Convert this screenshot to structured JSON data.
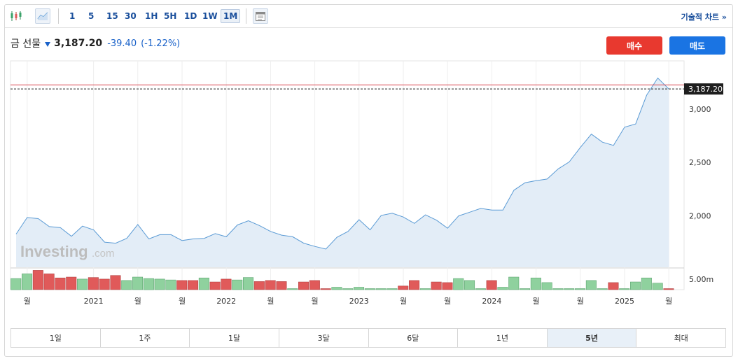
{
  "toolbar": {
    "intervals": [
      "1",
      "5",
      "15",
      "30",
      "1H",
      "5H",
      "1D",
      "1W",
      "1M"
    ],
    "active_interval": "1M",
    "tech_link": "기술적 차트 »",
    "icons": [
      "candlestick-icon",
      "area-chart-icon",
      "calendar-icon"
    ]
  },
  "quote": {
    "name": "금 선물",
    "last": "3,187.20",
    "change": "-39.40",
    "change_pct": "(-1.22%)",
    "direction": "down"
  },
  "actions": {
    "buy": "매수",
    "sell": "매도"
  },
  "watermark": {
    "brand": "Investing",
    "suffix": ".com"
  },
  "colors": {
    "up_volume": "#8fd19e",
    "down_volume": "#e05a5a",
    "line": "#5b9bd5",
    "area": "#e3edf7",
    "current_line": "#d9434e",
    "price_label_bg": "#1e1e1e"
  },
  "chart_data": {
    "type": "area",
    "price_axis_ticks": [
      "3,000",
      "2,500",
      "2,000"
    ],
    "price_axis_values": [
      3000,
      2500,
      2000
    ],
    "volume_axis_label": "5.00m",
    "current_price_label": "3,187.20",
    "current_price": 3187.2,
    "red_reference_price": 3225,
    "x_tick_labels": [
      "월",
      "2021",
      "월",
      "월",
      "2022",
      "월",
      "월",
      "2023",
      "월",
      "월",
      "2024",
      "월",
      "월",
      "2025",
      "월"
    ],
    "x_tick_index": [
      1,
      7,
      11,
      15,
      19,
      23,
      27,
      31,
      35,
      39,
      43,
      47,
      51,
      55,
      59
    ],
    "ylim": [
      1520,
      3450
    ],
    "prices": [
      1830,
      1985,
      1975,
      1900,
      1890,
      1810,
      1905,
      1870,
      1755,
      1745,
      1790,
      1920,
      1785,
      1825,
      1825,
      1770,
      1785,
      1790,
      1835,
      1805,
      1915,
      1955,
      1910,
      1855,
      1820,
      1805,
      1745,
      1715,
      1690,
      1800,
      1855,
      1965,
      1870,
      2005,
      2025,
      1990,
      1930,
      2010,
      1960,
      1885,
      2000,
      2035,
      2070,
      2055,
      2055,
      2240,
      2310,
      2330,
      2345,
      2440,
      2505,
      2640,
      2765,
      2690,
      2660,
      2830,
      2860,
      3130,
      3290,
      3187
    ],
    "volume_direction": [
      "up",
      "up",
      "down",
      "down",
      "down",
      "down",
      "up",
      "down",
      "down",
      "down",
      "up",
      "up",
      "up",
      "up",
      "up",
      "down",
      "down",
      "up",
      "down",
      "down",
      "up",
      "up",
      "down",
      "down",
      "down",
      "up",
      "down",
      "down",
      "down",
      "up",
      "up",
      "up",
      "up",
      "up",
      "up",
      "down",
      "down",
      "up",
      "down",
      "down",
      "up",
      "up",
      "up",
      "down",
      "up",
      "up",
      "up",
      "up",
      "up",
      "up",
      "up",
      "up",
      "up",
      "up",
      "down",
      "up",
      "up",
      "up",
      "up",
      "down"
    ],
    "volume_rel": [
      0.55,
      0.78,
      0.95,
      0.78,
      0.58,
      0.62,
      0.52,
      0.6,
      0.52,
      0.7,
      0.45,
      0.62,
      0.55,
      0.52,
      0.48,
      0.45,
      0.45,
      0.58,
      0.38,
      0.52,
      0.48,
      0.6,
      0.4,
      0.45,
      0.4,
      0.05,
      0.38,
      0.45,
      0.05,
      0.12,
      0.05,
      0.12,
      0.05,
      0.05,
      0.05,
      0.18,
      0.45,
      0.05,
      0.38,
      0.35,
      0.55,
      0.45,
      0.05,
      0.45,
      0.12,
      0.62,
      0.05,
      0.58,
      0.35,
      0.05,
      0.05,
      0.05,
      0.45,
      0.05,
      0.35,
      0.05,
      0.38,
      0.58,
      0.32,
      0.05
    ]
  },
  "ranges": [
    "1일",
    "1주",
    "1달",
    "3달",
    "6달",
    "1년",
    "5년",
    "최대"
  ],
  "active_range": "5년"
}
